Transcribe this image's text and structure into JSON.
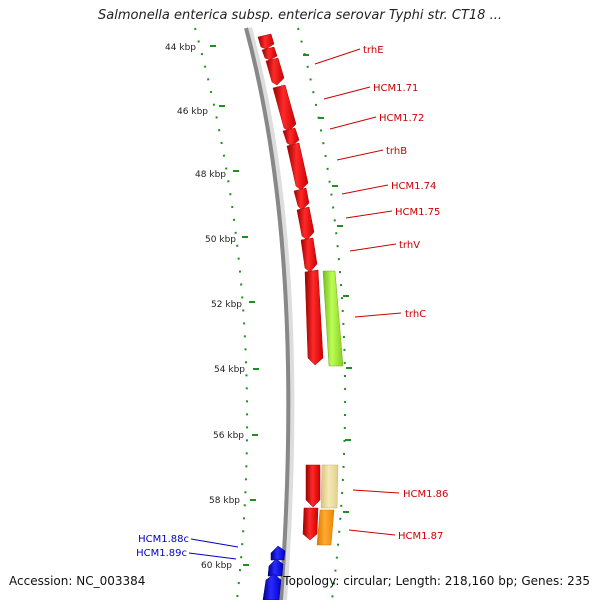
{
  "title": "Salmonella enterica subsp. enterica serovar Typhi str. CT18 ...",
  "footer": {
    "accession": "Accession: NC_003384",
    "topology": "Topology: circular; Length: 218,160 bp; Genes: 235"
  },
  "ticks": [
    {
      "label": "44 kbp"
    },
    {
      "label": "46 kbp"
    },
    {
      "label": "48 kbp"
    },
    {
      "label": "50 kbp"
    },
    {
      "label": "52 kbp"
    },
    {
      "label": "54 kbp"
    },
    {
      "label": "56 kbp"
    },
    {
      "label": "58 kbp"
    },
    {
      "label": "60 kbp"
    }
  ],
  "features": [
    {
      "label": "trhE",
      "strand": "forward"
    },
    {
      "label": "HCM1.71",
      "strand": "forward"
    },
    {
      "label": "HCM1.72",
      "strand": "forward"
    },
    {
      "label": "trhB",
      "strand": "forward"
    },
    {
      "label": "HCM1.74",
      "strand": "forward"
    },
    {
      "label": "HCM1.75",
      "strand": "forward"
    },
    {
      "label": "trhV",
      "strand": "forward"
    },
    {
      "label": "trhC",
      "strand": "forward"
    },
    {
      "label": "HCM1.86",
      "strand": "forward"
    },
    {
      "label": "HCM1.87",
      "strand": "forward"
    },
    {
      "label": "HCM1.88c",
      "strand": "reverse"
    },
    {
      "label": "HCM1.89c",
      "strand": "reverse"
    }
  ],
  "colors": {
    "forward_cds": "#ff0000",
    "reverse_cds": "#0000ff",
    "forward_label": "#cc0000",
    "reverse_label": "#0000cc",
    "backbone": "#888888",
    "ticks": "#1f8f1f",
    "feature_lightgreen": "#99ee33",
    "feature_beige": "#eedd99",
    "feature_orange": "#ff9911"
  }
}
